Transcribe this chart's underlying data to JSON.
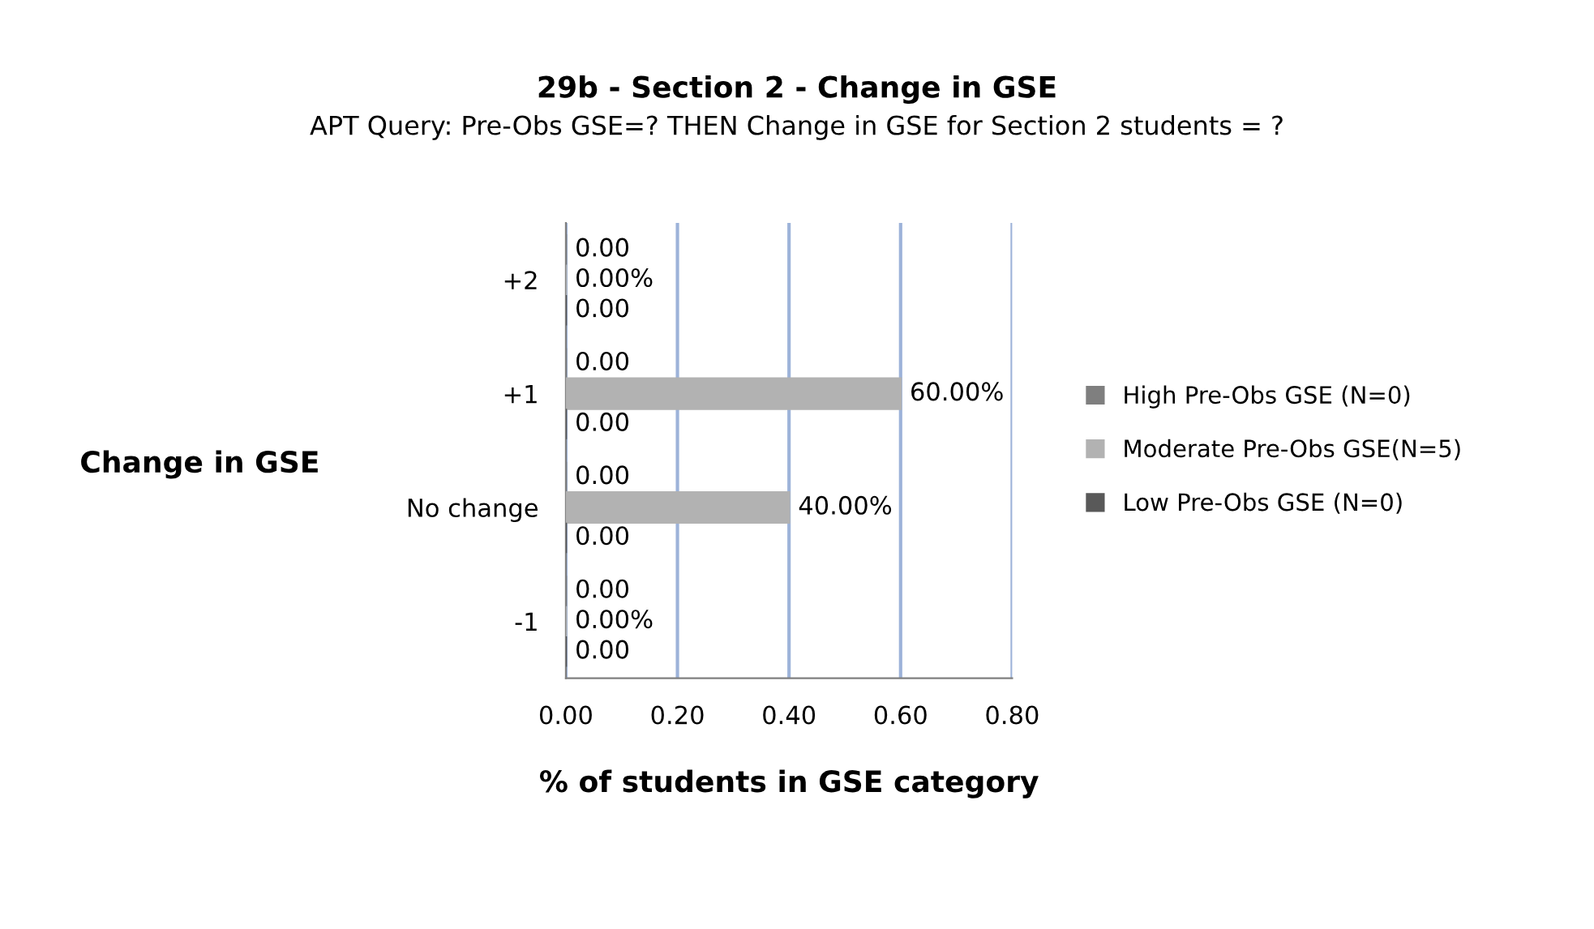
{
  "chart_data": {
    "type": "bar",
    "orientation": "horizontal",
    "title": "29b - Section 2 - Change in GSE",
    "subtitle": "APT Query: Pre-Obs GSE=? THEN Change in GSE for Section 2 students = ?",
    "xlabel": "% of students in GSE category",
    "ylabel": "Change in GSE",
    "categories": [
      "+2",
      "+1",
      "No change",
      "-1"
    ],
    "series": [
      {
        "name": "High Pre-Obs GSE (N=0)",
        "color": "#7f7f7f",
        "values": [
          0,
          0,
          0,
          0
        ],
        "value_labels": [
          "0.00",
          "0.00",
          "0.00",
          "0.00"
        ]
      },
      {
        "name": "Moderate Pre-Obs GSE(N=5)",
        "color": "#b2b2b2",
        "values": [
          0,
          0.6,
          0.4,
          0
        ],
        "value_labels": [
          "0.00%",
          "60.00%",
          "40.00%",
          "0.00%"
        ]
      },
      {
        "name": "Low Pre-Obs GSE (N=0)",
        "color": "#595959",
        "values": [
          0,
          0,
          0,
          0
        ],
        "value_labels": [
          "0.00",
          "0.00",
          "0.00",
          "0.00"
        ]
      }
    ],
    "xlim": [
      0,
      0.8
    ],
    "xticks": [
      {
        "value": 0,
        "label": "0.00"
      },
      {
        "value": 0.2,
        "label": "0.20"
      },
      {
        "value": 0.4,
        "label": "0.40"
      },
      {
        "value": 0.6,
        "label": "0.60"
      },
      {
        "value": 0.8,
        "label": "0.80"
      }
    ],
    "grid": "x",
    "legend": "right"
  }
}
